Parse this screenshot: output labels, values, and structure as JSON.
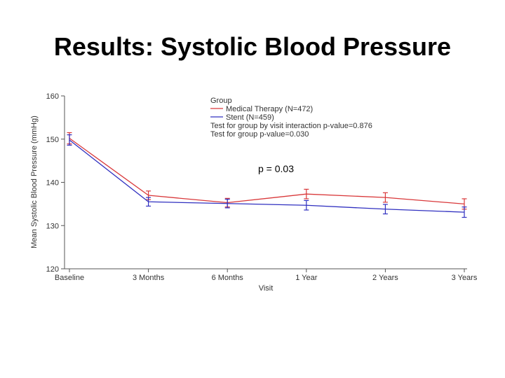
{
  "slide": {
    "title": "Results: Systolic Blood Pressure"
  },
  "chart_data": {
    "type": "line",
    "categories": [
      "Baseline",
      "3 Months",
      "6 Months",
      "1 Year",
      "2 Years",
      "3 Years"
    ],
    "series": [
      {
        "name": "Medical Therapy (N=472)",
        "color": "#d9383a",
        "values": [
          150.2,
          137.0,
          135.3,
          137.3,
          136.5,
          135.0
        ],
        "error": [
          1.3,
          1.0,
          1.0,
          1.1,
          1.1,
          1.2
        ]
      },
      {
        "name": "Stent (N=459)",
        "color": "#3030c0",
        "values": [
          149.8,
          135.5,
          135.1,
          134.7,
          133.8,
          133.1
        ],
        "error": [
          1.2,
          1.0,
          1.0,
          1.1,
          1.1,
          1.2
        ]
      }
    ],
    "legend_title": "Group",
    "legend_position": "top",
    "legend_notes": [
      "Test for group by visit interaction p-value=0.876",
      "Test for group p-value=0.030"
    ],
    "annotation": "p = 0.03",
    "xlabel": "Visit",
    "ylabel": "Mean Systolic Blood Pressure (mmHg)",
    "ylim": [
      120,
      160
    ],
    "yticks": [
      120,
      130,
      140,
      150,
      160
    ],
    "grid": false
  }
}
